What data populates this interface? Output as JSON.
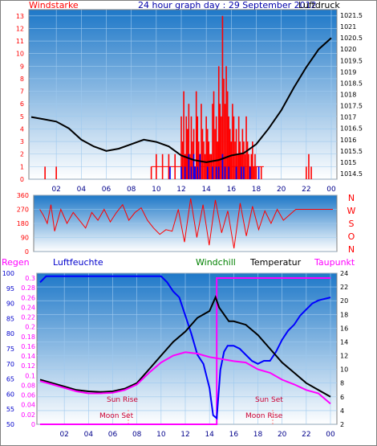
{
  "header": {
    "left_label": "Windstarke",
    "title": "24 hour graph day : 29 September 2012",
    "right_label": "Luftdruck"
  },
  "colors": {
    "frame": "#808080",
    "wind_red": "#ff0000",
    "blue_line": "#0000ff",
    "black_line": "#000000",
    "magenta": "#ff00ff",
    "green": "#008000",
    "panel_gradient_top": "#1e78c8",
    "panel_gradient_bottom": "#ffffff"
  },
  "bottom_header": {
    "regen": "Regen",
    "luftfeuchte": "Luftfeuchte",
    "windchill": "Windchill",
    "temperatur": "Temperatur",
    "taupunkt": "Taupunkt"
  },
  "annotations": {
    "sun_rise": "Sun Rise",
    "sun_set": "Sun Set",
    "moon_set": "Moon Set",
    "moon_rise": "Moon Rise"
  },
  "direction_labels": [
    "N",
    "W",
    "S",
    "O",
    "N"
  ],
  "chart_data": [
    {
      "type": "line",
      "x_ticks": [
        "02",
        "04",
        "06",
        "08",
        "10",
        "12",
        "14",
        "16",
        "18",
        "20",
        "22",
        "00"
      ],
      "y_left_ticks": [
        "0",
        "1",
        "2",
        "3",
        "4",
        "5",
        "6",
        "7",
        "8",
        "9",
        "10",
        "11",
        "12",
        "13"
      ],
      "y_right_ticks": [
        "1014.5",
        "1015",
        "1015.5",
        "1016",
        "1016.5",
        "1017",
        "1017.5",
        "1018",
        "1018.5",
        "1019",
        "1019.5",
        "1020",
        "1020.5",
        "1021",
        "1021.5"
      ],
      "ylim_left": [
        0,
        13.5
      ],
      "ylim_right": [
        1014.25,
        1021.75
      ],
      "grid": true,
      "series": [
        {
          "name": "Windstarke",
          "type": "bar",
          "x": [
            1.1,
            1.25,
            1.4,
            1.55,
            1.7,
            1.85,
            2.0,
            9.6,
            10.0,
            10.5,
            11.0,
            11.5,
            12.0,
            12.1,
            12.2,
            12.3,
            12.4,
            12.5,
            12.6,
            12.7,
            12.8,
            12.9,
            13.0,
            13.1,
            13.2,
            13.3,
            13.4,
            13.5,
            13.6,
            13.7,
            13.8,
            13.9,
            14.0,
            14.1,
            14.2,
            14.3,
            14.4,
            14.5,
            14.6,
            14.7,
            14.8,
            14.9,
            15.0,
            15.1,
            15.2,
            15.3,
            15.4,
            15.5,
            15.6,
            15.7,
            15.8,
            15.9,
            16.0,
            16.1,
            16.2,
            16.3,
            16.4,
            16.5,
            16.6,
            16.7,
            16.8,
            16.9,
            17.0,
            17.1,
            17.2,
            17.3,
            17.4,
            17.5,
            17.6,
            17.7,
            17.8,
            17.9,
            18.0,
            18.2,
            18.4,
            18.6,
            22.0,
            22.2,
            22.4
          ],
          "values": [
            1,
            0,
            0,
            0,
            0,
            0,
            1,
            1,
            2,
            2,
            2,
            2,
            5,
            3,
            7,
            2,
            5,
            4,
            6,
            2,
            5,
            3,
            4,
            1,
            7,
            5,
            3,
            2,
            6,
            4,
            3,
            2,
            5,
            4,
            3,
            2,
            2,
            6,
            7,
            4,
            5,
            3,
            9,
            6,
            5,
            13,
            8,
            6,
            9,
            7,
            5,
            4,
            3,
            6,
            5,
            3,
            4,
            2,
            5,
            3,
            2,
            4,
            3,
            2,
            5,
            3,
            2,
            1,
            2,
            3,
            1,
            2,
            1,
            0,
            1,
            0,
            1,
            2,
            1
          ]
        },
        {
          "name": "Windstarke-low",
          "type": "bar",
          "x": [
            11.1,
            12.0,
            12.3,
            12.6,
            12.8,
            13.0,
            13.1,
            13.3,
            13.5,
            14.1,
            14.5,
            14.8,
            15.0,
            15.3,
            15.5,
            15.8,
            16.4,
            16.8,
            17.0,
            17.5,
            18.2
          ],
          "values": [
            1,
            1,
            1,
            2,
            1,
            2,
            1,
            1,
            2,
            1,
            1,
            1,
            1,
            2,
            1,
            1,
            1,
            1,
            1,
            1,
            1
          ]
        },
        {
          "name": "Luftdruck",
          "type": "line",
          "x": [
            0,
            1,
            2,
            3,
            4,
            5,
            6,
            7,
            8,
            9,
            10,
            11,
            12,
            13,
            14,
            15,
            16,
            17,
            18,
            19,
            20,
            21,
            22,
            23,
            24
          ],
          "values": [
            1017.0,
            1016.9,
            1016.8,
            1016.5,
            1016.0,
            1015.7,
            1015.5,
            1015.6,
            1015.8,
            1016.0,
            1015.9,
            1015.7,
            1015.3,
            1015.1,
            1015.0,
            1015.1,
            1015.3,
            1015.4,
            1015.8,
            1016.5,
            1017.3,
            1018.3,
            1019.2,
            1020.0,
            1020.5
          ]
        }
      ]
    },
    {
      "type": "line",
      "y_ticks": [
        "0",
        "90",
        "180",
        "270",
        "360"
      ],
      "ylim": [
        0,
        360
      ],
      "series": [
        {
          "name": "Windrichtung",
          "x": [
            0.3,
            0.6,
            0.9,
            1.2,
            1.5,
            2.0,
            2.5,
            3.0,
            3.5,
            4.0,
            4.5,
            5.0,
            5.5,
            6.0,
            6.5,
            7.0,
            7.5,
            8.0,
            8.5,
            9.0,
            9.5,
            10.0,
            10.5,
            11.0,
            11.5,
            12.0,
            12.5,
            13.0,
            13.5,
            14.0,
            14.5,
            15.0,
            15.5,
            16.0,
            16.5,
            17.0,
            17.5,
            18.0,
            18.5,
            19.0,
            19.5,
            20.0,
            21.0,
            22.0,
            23.0,
            24.0
          ],
          "values": [
            270,
            230,
            180,
            300,
            130,
            270,
            180,
            250,
            200,
            150,
            250,
            200,
            270,
            190,
            250,
            300,
            200,
            250,
            280,
            200,
            150,
            110,
            140,
            130,
            270,
            60,
            340,
            90,
            300,
            40,
            330,
            120,
            260,
            20,
            310,
            100,
            290,
            140,
            260,
            180,
            270,
            200,
            270,
            270,
            270,
            270
          ]
        }
      ]
    },
    {
      "type": "line",
      "x_ticks": [
        "02",
        "04",
        "06",
        "08",
        "10",
        "12",
        "14",
        "16",
        "18",
        "20",
        "22",
        "00"
      ],
      "y_regen_ticks": [
        "0",
        "0.02",
        "0.04",
        "0.06",
        "0.08",
        "0.1",
        "0.12",
        "0.14",
        "0.16",
        "0.18",
        "0.2",
        "0.22",
        "0.24",
        "0.26",
        "0.28",
        "0.3"
      ],
      "y_humidity_ticks": [
        "50",
        "55",
        "60",
        "65",
        "70",
        "75",
        "80",
        "85",
        "90",
        "95",
        "100"
      ],
      "y_temp_ticks": [
        "2",
        "4",
        "6",
        "8",
        "10",
        "12",
        "14",
        "16",
        "18",
        "20",
        "22",
        "24"
      ],
      "ylim_humidity": [
        50,
        100
      ],
      "ylim_temp": [
        2,
        24
      ],
      "series": [
        {
          "name": "Luftfeuchte",
          "x": [
            0,
            0.5,
            1,
            2,
            4,
            6,
            8,
            9,
            10,
            10.5,
            11,
            11.5,
            12,
            12.5,
            13,
            13.5,
            14,
            14.3,
            14.6,
            14.9,
            15.2,
            15.5,
            16,
            16.5,
            17,
            17.5,
            18,
            18.5,
            19,
            19.5,
            20,
            20.5,
            21,
            21.5,
            22,
            22.5,
            23,
            24
          ],
          "values": [
            97,
            99,
            99,
            99,
            99,
            99,
            99,
            99,
            99,
            97,
            94,
            92,
            86,
            80,
            73,
            70,
            62,
            53,
            52,
            68,
            74,
            76,
            76,
            75,
            73,
            71,
            70,
            71,
            71,
            74,
            78,
            81,
            83,
            86,
            88,
            90,
            91,
            92
          ]
        },
        {
          "name": "Temperatur",
          "x": [
            0,
            1,
            2,
            3,
            4,
            5,
            6,
            7,
            8,
            9,
            10,
            11,
            12,
            13,
            14,
            14.5,
            14.8,
            15.2,
            15.6,
            16,
            17,
            18,
            19,
            20,
            21,
            22,
            23,
            24
          ],
          "values": [
            8.5,
            8.0,
            7.5,
            7.0,
            6.8,
            6.7,
            6.8,
            7.2,
            8.0,
            10.0,
            12.0,
            14.0,
            15.5,
            17.5,
            18.5,
            20.5,
            19.0,
            18.0,
            17.0,
            17.0,
            16.5,
            15.0,
            13.0,
            11.0,
            9.5,
            8.0,
            7.0,
            6.0
          ]
        },
        {
          "name": "Taupunkt",
          "x": [
            0,
            1,
            2,
            3,
            4,
            5,
            6,
            7,
            8,
            9,
            10,
            11,
            12,
            13,
            14,
            15,
            16,
            17,
            18,
            19,
            20,
            21,
            22,
            23,
            24
          ],
          "values": [
            8.3,
            7.8,
            7.3,
            6.8,
            6.5,
            6.5,
            6.6,
            7.0,
            7.8,
            9.5,
            11.0,
            12.0,
            12.5,
            12.3,
            11.8,
            11.5,
            11.2,
            11.0,
            10.0,
            9.5,
            8.5,
            7.8,
            7.0,
            6.5,
            5.0
          ]
        },
        {
          "name": "Regen",
          "x": [
            0,
            14.6,
            14.6,
            24
          ],
          "values": [
            0,
            0,
            0.3,
            0.3
          ]
        }
      ]
    }
  ]
}
